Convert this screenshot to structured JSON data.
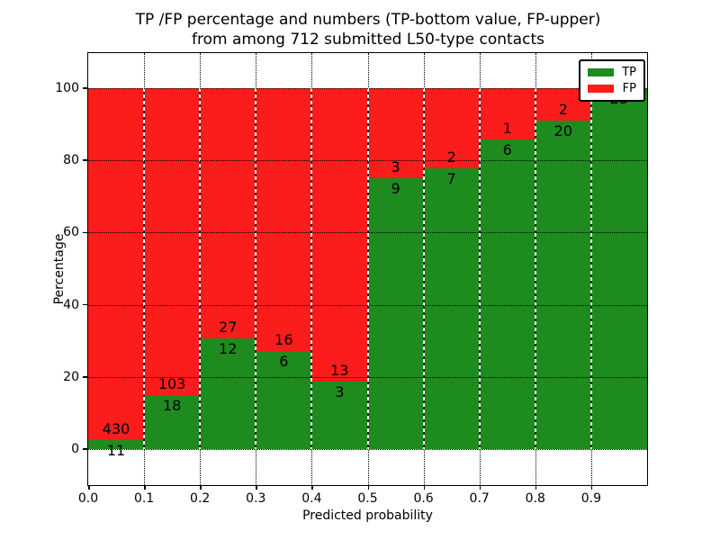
{
  "figure": {
    "title_line1": "TP /FP percentage and numbers (TP-bottom value, FP-upper)",
    "title_line2": "from among 712 submitted L50-type contacts",
    "xlabel": "Predicted probability",
    "ylabel": "Percentage"
  },
  "legend": {
    "items": [
      {
        "label": "TP",
        "color": "#1e8b1e"
      },
      {
        "label": "FP",
        "color": "#fb1c1c"
      }
    ]
  },
  "chart_data": {
    "type": "bar",
    "stacked": true,
    "normalized": "each bin scaled to 100 percent",
    "title": "TP /FP percentage and numbers (TP-bottom value, FP-upper) from among 712 submitted L50-type contacts",
    "xlabel": "Predicted probability",
    "ylabel": "Percentage",
    "total_submitted": 712,
    "bin_edges": [
      0.0,
      0.1,
      0.2,
      0.3,
      0.4,
      0.5,
      0.6,
      0.7,
      0.8,
      0.9,
      1.0
    ],
    "x_tick_labels": [
      "0.0",
      "0.1",
      "0.2",
      "0.3",
      "0.4",
      "0.5",
      "0.6",
      "0.7",
      "0.8",
      "0.9"
    ],
    "y_ticks": [
      0,
      20,
      40,
      60,
      80,
      100
    ],
    "y_tick_labels": [
      "0",
      "20",
      "40",
      "60",
      "80",
      "100"
    ],
    "ylim": [
      -10,
      110
    ],
    "grid": "dotted both axes",
    "legend_position": "upper right",
    "series": [
      {
        "name": "TP",
        "color": "#1e8b1e",
        "counts": [
          11,
          18,
          12,
          6,
          3,
          9,
          7,
          6,
          20,
          23
        ]
      },
      {
        "name": "FP",
        "color": "#fb1c1c",
        "counts": [
          430,
          103,
          27,
          16,
          13,
          3,
          2,
          1,
          2,
          0
        ]
      }
    ],
    "tp_percent_of_bin": [
      2.5,
      14.9,
      30.8,
      27.3,
      18.8,
      75.0,
      77.8,
      85.7,
      90.9,
      100.0
    ]
  }
}
